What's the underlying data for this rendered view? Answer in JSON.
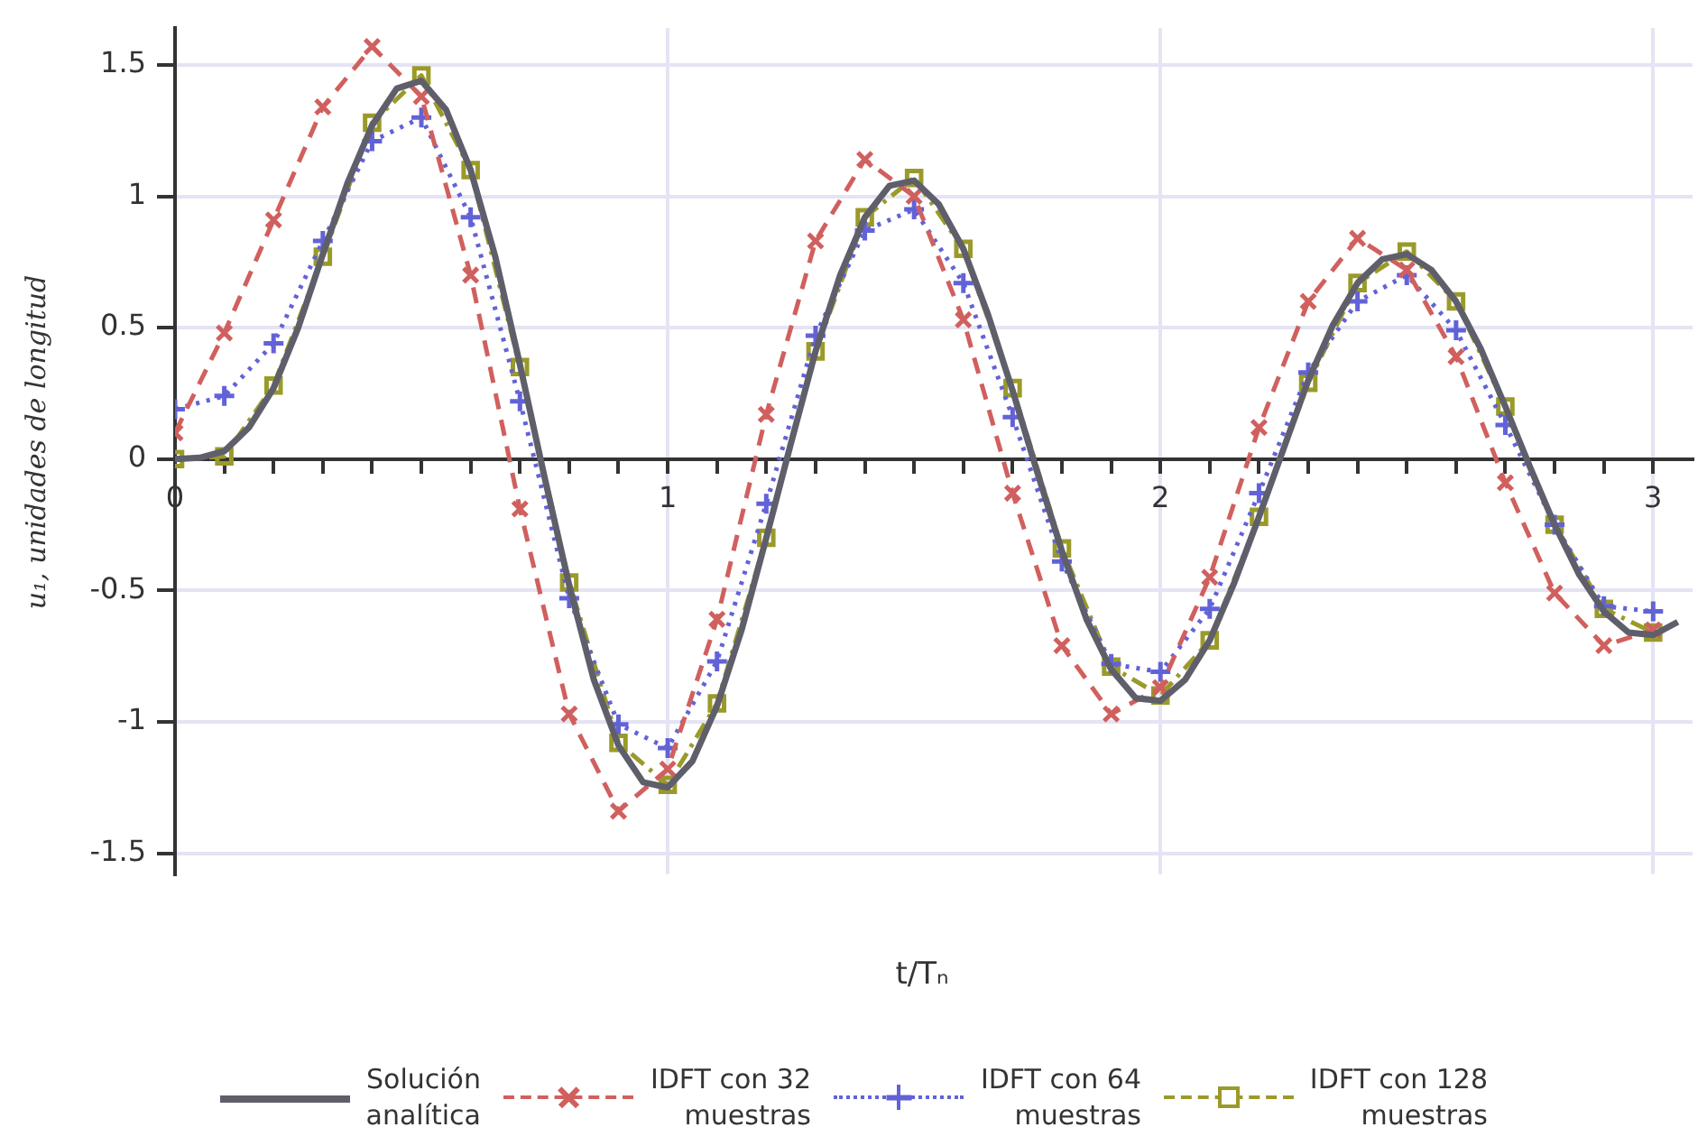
{
  "chart_data": {
    "type": "line",
    "xlabel": "t/Tₙ",
    "ylabel": "u₁, unidades de longitud",
    "xlim": [
      0,
      3.08
    ],
    "ylim": [
      -1.58,
      1.64
    ],
    "xticks": [
      0,
      {
        "value": 0.1,
        "label": null
      },
      {
        "value": 0.2,
        "label": null
      },
      {
        "value": 0.3,
        "label": null
      },
      {
        "value": 0.4,
        "label": null
      },
      {
        "value": 0.5,
        "label": null
      },
      {
        "value": 0.6,
        "label": null
      },
      {
        "value": 0.7,
        "label": null
      },
      {
        "value": 0.8,
        "label": null
      },
      {
        "value": 0.9,
        "label": null
      },
      1,
      {
        "value": 1.1,
        "label": null
      },
      {
        "value": 1.2,
        "label": null
      },
      {
        "value": 1.3,
        "label": null
      },
      {
        "value": 1.4,
        "label": null
      },
      {
        "value": 1.5,
        "label": null
      },
      {
        "value": 1.6,
        "label": null
      },
      {
        "value": 1.7,
        "label": null
      },
      {
        "value": 1.8,
        "label": null
      },
      {
        "value": 1.9,
        "label": null
      },
      2,
      {
        "value": 2.1,
        "label": null
      },
      {
        "value": 2.2,
        "label": null
      },
      {
        "value": 2.3,
        "label": null
      },
      {
        "value": 2.4,
        "label": null
      },
      {
        "value": 2.5,
        "label": null
      },
      {
        "value": 2.6,
        "label": null
      },
      {
        "value": 2.7,
        "label": null
      },
      {
        "value": 2.8,
        "label": null
      },
      {
        "value": 2.9,
        "label": null
      },
      3
    ],
    "yticks": [
      -1.5,
      -1,
      -0.5,
      0,
      0.5,
      1,
      1.5
    ],
    "grid": true,
    "legend": "bottom",
    "series": [
      {
        "name": "Solución analítica",
        "color": "#5f5f6b",
        "marker": "none",
        "line_style": "solid",
        "x": [
          0,
          0.05,
          0.1,
          0.15,
          0.2,
          0.25,
          0.3,
          0.35,
          0.4,
          0.45,
          0.5,
          0.55,
          0.6,
          0.65,
          0.7,
          0.75,
          0.8,
          0.85,
          0.9,
          0.95,
          1,
          1.05,
          1.1,
          1.15,
          1.2,
          1.25,
          1.3,
          1.35,
          1.4,
          1.45,
          1.5,
          1.55,
          1.6,
          1.65,
          1.7,
          1.75,
          1.8,
          1.85,
          1.9,
          1.95,
          2,
          2.05,
          2.1,
          2.15,
          2.2,
          2.25,
          2.3,
          2.35,
          2.4,
          2.45,
          2.5,
          2.55,
          2.6,
          2.65,
          2.7,
          2.75,
          2.8,
          2.85,
          2.9,
          2.95,
          3,
          3.05
        ],
        "values": [
          0,
          0.005,
          0.03,
          0.12,
          0.27,
          0.5,
          0.78,
          1.05,
          1.27,
          1.41,
          1.44,
          1.33,
          1.1,
          0.77,
          0.36,
          -0.07,
          -0.48,
          -0.84,
          -1.09,
          -1.23,
          -1.25,
          -1.15,
          -0.94,
          -0.65,
          -0.3,
          0.06,
          0.41,
          0.7,
          0.92,
          1.04,
          1.06,
          0.97,
          0.8,
          0.55,
          0.26,
          -0.05,
          -0.35,
          -0.61,
          -0.8,
          -0.91,
          -0.92,
          -0.84,
          -0.69,
          -0.47,
          -0.22,
          0.04,
          0.3,
          0.51,
          0.67,
          0.76,
          0.78,
          0.72,
          0.6,
          0.42,
          0.2,
          -0.03,
          -0.25,
          -0.44,
          -0.58,
          -0.66,
          -0.67,
          -0.62
        ]
      },
      {
        "name": "IDFT con 32 muestras",
        "color": "#d0605e",
        "marker": "cross",
        "line_style": "dashed",
        "x": [
          0,
          0.1,
          0.2,
          0.3,
          0.4,
          0.5,
          0.6,
          0.7,
          0.8,
          0.9,
          1,
          1.1,
          1.2,
          1.3,
          1.4,
          1.5,
          1.6,
          1.7,
          1.8,
          1.9,
          2,
          2.1,
          2.2,
          2.3,
          2.4,
          2.5,
          2.6,
          2.7,
          2.8,
          2.9,
          3
        ],
        "values": [
          0.1,
          0.48,
          0.91,
          1.34,
          1.57,
          1.38,
          0.7,
          -0.19,
          -0.97,
          -1.34,
          -1.18,
          -0.61,
          0.17,
          0.83,
          1.14,
          1.0,
          0.53,
          -0.13,
          -0.71,
          -0.97,
          -0.87,
          -0.45,
          0.12,
          0.6,
          0.84,
          0.72,
          0.39,
          -0.09,
          -0.51,
          -0.71,
          -0.65
        ]
      },
      {
        "name": "IDFT con 64 muestras",
        "color": "#6262d8",
        "marker": "plus",
        "line_style": "dotted",
        "x": [
          0,
          0.1,
          0.2,
          0.3,
          0.4,
          0.5,
          0.6,
          0.7,
          0.8,
          0.9,
          1,
          1.1,
          1.2,
          1.3,
          1.4,
          1.5,
          1.6,
          1.7,
          1.8,
          1.9,
          2,
          2.1,
          2.2,
          2.3,
          2.4,
          2.5,
          2.6,
          2.7,
          2.8,
          2.9,
          3
        ],
        "values": [
          0.19,
          0.24,
          0.44,
          0.83,
          1.21,
          1.3,
          0.92,
          0.22,
          -0.53,
          -1.01,
          -1.1,
          -0.77,
          -0.17,
          0.47,
          0.87,
          0.95,
          0.67,
          0.16,
          -0.39,
          -0.78,
          -0.81,
          -0.57,
          -0.13,
          0.33,
          0.6,
          0.7,
          0.49,
          0.13,
          -0.25,
          -0.56,
          -0.58
        ]
      },
      {
        "name": "IDFT con 128 muestras",
        "color": "#9a9a2a",
        "marker": "square",
        "line_style": "dashdot",
        "x": [
          0,
          0.1,
          0.2,
          0.3,
          0.4,
          0.5,
          0.6,
          0.7,
          0.8,
          0.9,
          1,
          1.1,
          1.2,
          1.3,
          1.4,
          1.5,
          1.6,
          1.7,
          1.8,
          1.9,
          2,
          2.1,
          2.2,
          2.3,
          2.4,
          2.5,
          2.6,
          2.7,
          2.8,
          2.9,
          3
        ],
        "values": [
          0,
          0.01,
          0.28,
          0.77,
          1.28,
          1.46,
          1.1,
          0.35,
          -0.47,
          -1.08,
          -1.24,
          -0.93,
          -0.3,
          0.41,
          0.92,
          1.07,
          0.8,
          0.27,
          -0.34,
          -0.79,
          -0.9,
          -0.69,
          -0.22,
          0.29,
          0.67,
          0.79,
          0.6,
          0.2,
          -0.25,
          -0.57,
          -0.66
        ]
      }
    ]
  }
}
